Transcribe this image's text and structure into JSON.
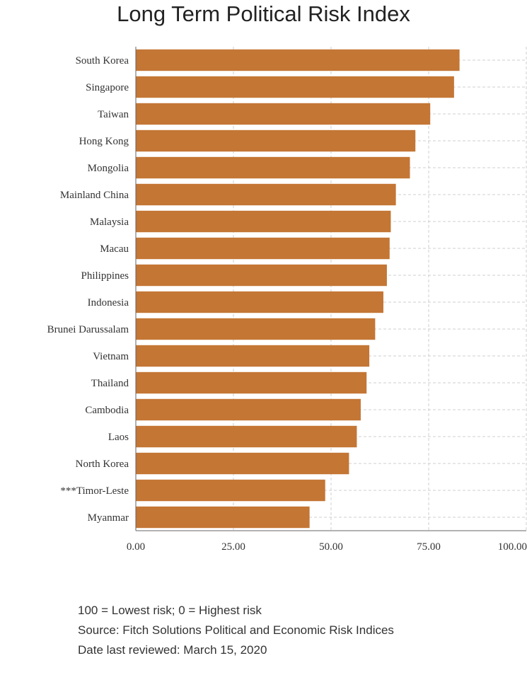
{
  "chart_data": {
    "type": "bar",
    "orientation": "horizontal",
    "title": "Long Term Political Risk Index",
    "xlabel": "",
    "ylabel": "",
    "categories": [
      "South Korea",
      "Singapore",
      "Taiwan",
      "Hong Kong",
      "Mongolia",
      "Mainland China",
      "Malaysia",
      "Macau",
      "Philippines",
      "Indonesia",
      "Brunei Darussalam",
      "Vietnam",
      "Thailand",
      "Cambodia",
      "Laos",
      "North Korea",
      "***Timor-Leste",
      "Myanmar"
    ],
    "values": [
      82.9,
      81.5,
      75.4,
      71.6,
      70.2,
      66.6,
      65.3,
      65.0,
      64.3,
      63.4,
      61.3,
      59.8,
      59.1,
      57.6,
      56.6,
      54.6,
      48.5,
      44.5
    ],
    "xlim": [
      0,
      100
    ],
    "xticks": [
      0,
      25,
      50,
      75,
      100
    ],
    "xtick_labels": [
      "0.00",
      "25.00",
      "50.00",
      "75.00",
      "100.00"
    ],
    "grid": true,
    "bar_color": "#C47635"
  },
  "notes": {
    "line1": "100 = Lowest risk; 0 = Highest risk",
    "line2": "Source: Fitch Solutions Political and Economic Risk Indices",
    "line3": "Date last reviewed: March 15, 2020"
  }
}
